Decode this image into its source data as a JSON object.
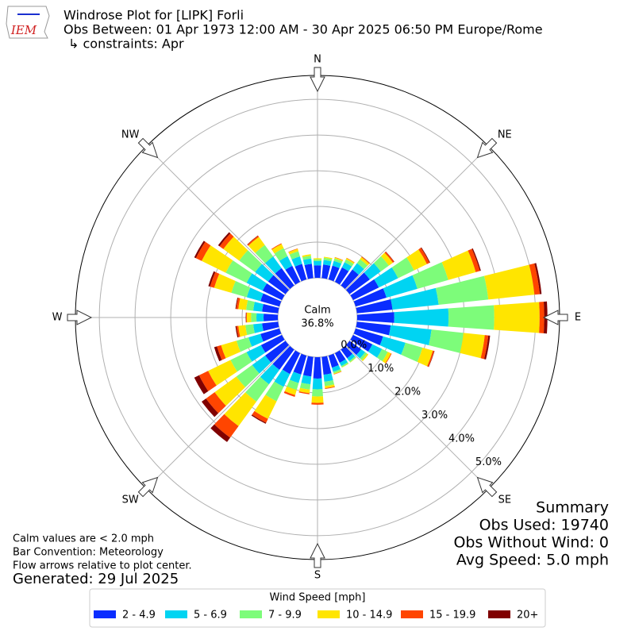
{
  "chart_data": {
    "type": "windrose",
    "title": "Windrose Plot for [LIPK] Forli",
    "subtitle": "Obs Between: 01 Apr 1973 12:00 AM - 30 Apr 2025 06:50 PM Europe/Rome",
    "constraints": "↳ constraints: Apr",
    "logo_text": "IEM",
    "compass_labels": [
      "N",
      "NE",
      "E",
      "SE",
      "S",
      "SW",
      "W",
      "NW"
    ],
    "categories": [
      null,
      null,
      null,
      null,
      null,
      null,
      null,
      null,
      null,
      null,
      null,
      null,
      null,
      null,
      null,
      null,
      null,
      null,
      null,
      null,
      null,
      null,
      null,
      null,
      null,
      null,
      null,
      null,
      null,
      null,
      null,
      null,
      null,
      null,
      null,
      null
    ],
    "rlim": [
      0,
      5.67
    ],
    "rticks": [
      {
        "value": 0,
        "label": "0.0%"
      },
      {
        "value": 1,
        "label": "1.0%"
      },
      {
        "value": 2,
        "label": "2.0%"
      },
      {
        "value": 3,
        "label": "3.0%"
      },
      {
        "value": 4,
        "label": "4.0%"
      },
      {
        "value": 5,
        "label": "5.0%"
      }
    ],
    "calm": {
      "label": "Calm",
      "value": 36.8,
      "value_label": "36.8%"
    },
    "legend_title": "Wind Speed [mph]",
    "series": [
      {
        "name": "2 - 4.9",
        "color": "#0a2dff",
        "values": [
          0.35,
          0.38,
          0.4,
          0.45,
          0.55,
          0.7,
          0.8,
          0.9,
          1.0,
          1.04,
          0.95,
          0.8,
          0.6,
          0.4,
          0.3,
          0.3,
          0.35,
          0.5,
          0.6,
          0.55,
          0.55,
          0.65,
          0.7,
          0.7,
          0.65,
          0.55,
          0.45,
          0.4,
          0.45,
          0.55,
          0.6,
          0.6,
          0.6,
          0.5,
          0.45,
          0.4
        ]
      },
      {
        "name": "5 - 6.9",
        "color": "#00d4f2",
        "values": [
          0.12,
          0.13,
          0.14,
          0.16,
          0.22,
          0.38,
          0.6,
          0.9,
          1.3,
          1.52,
          1.15,
          0.65,
          0.3,
          0.14,
          0.1,
          0.1,
          0.12,
          0.2,
          0.3,
          0.22,
          0.25,
          0.4,
          0.5,
          0.45,
          0.45,
          0.35,
          0.25,
          0.2,
          0.25,
          0.4,
          0.5,
          0.45,
          0.4,
          0.3,
          0.22,
          0.15
        ]
      },
      {
        "name": "7 - 9.9",
        "color": "#7dfc7a",
        "values": [
          0.05,
          0.06,
          0.07,
          0.09,
          0.14,
          0.28,
          0.5,
          0.9,
          1.4,
          1.28,
          0.9,
          0.5,
          0.18,
          0.07,
          0.04,
          0.04,
          0.05,
          0.12,
          0.2,
          0.15,
          0.2,
          0.45,
          0.6,
          0.55,
          0.5,
          0.35,
          0.22,
          0.15,
          0.2,
          0.45,
          0.65,
          0.55,
          0.4,
          0.25,
          0.15,
          0.08
        ]
      },
      {
        "name": "10 - 14.9",
        "color": "#ffe500",
        "values": [
          0.03,
          0.03,
          0.03,
          0.04,
          0.07,
          0.14,
          0.4,
          0.8,
          1.3,
          1.27,
          0.6,
          0.3,
          0.1,
          0.04,
          0.01,
          0.01,
          0.02,
          0.06,
          0.18,
          0.1,
          0.15,
          0.55,
          0.85,
          0.75,
          0.7,
          0.45,
          0.2,
          0.12,
          0.22,
          0.5,
          0.75,
          0.55,
          0.28,
          0.13,
          0.07,
          0.04
        ]
      },
      {
        "name": "15 - 19.9",
        "color": "#ff4500",
        "values": [
          0,
          0,
          0.01,
          0.01,
          0.02,
          0.04,
          0.08,
          0.12,
          0.15,
          0.13,
          0.1,
          0.04,
          0.02,
          0,
          0,
          0,
          0.01,
          0.02,
          0.05,
          0.03,
          0.05,
          0.12,
          0.4,
          0.3,
          0.28,
          0.12,
          0.05,
          0.02,
          0.06,
          0.12,
          0.18,
          0.13,
          0.04,
          0.02,
          0.01,
          0
        ]
      },
      {
        "name": "20+",
        "color": "#800000",
        "values": [
          0,
          0,
          0,
          0,
          0,
          0.01,
          0.02,
          0.03,
          0.05,
          0.09,
          0.05,
          0.01,
          0,
          0,
          0,
          0,
          0,
          0,
          0,
          0,
          0,
          0.03,
          0.15,
          0.15,
          0.15,
          0.08,
          0.03,
          0.01,
          0.02,
          0.05,
          0.05,
          0.05,
          0.01,
          0,
          0,
          0
        ]
      }
    ],
    "summary": [
      "Summary",
      "Obs Used: 19740",
      "Obs Without Wind: 0",
      "Avg Speed: 5.0 mph"
    ],
    "notes": [
      "Calm values are < 2.0 mph",
      "Bar Convention: Meteorology",
      "Flow arrows relative to plot center."
    ],
    "generated": "Generated: 29 Jul 2025"
  }
}
